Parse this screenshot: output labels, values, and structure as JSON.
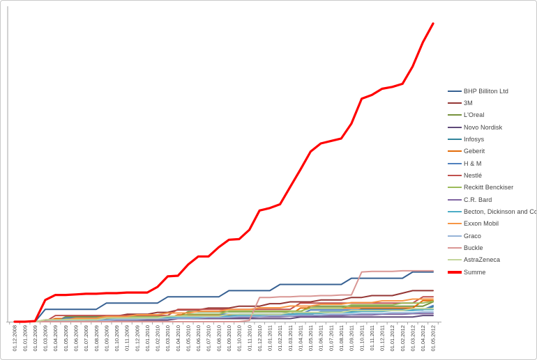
{
  "chart_data": {
    "type": "line",
    "title": "",
    "xlabel": "",
    "ylabel": "",
    "ylim": [
      0,
      50
    ],
    "grid": false,
    "y_axis_labels_visible": false,
    "legend_position": "right",
    "axis_color": "#a6a6a6",
    "tick_label_color": "#3f3f3f",
    "x_tick_rotation": -90,
    "categories": [
      "01.12.2008",
      "01.01.2009",
      "01.02.2009",
      "01.03.2009",
      "01.04.2009",
      "01.05.2009",
      "01.06.2009",
      "01.07.2009",
      "01.08.2009",
      "01.09.2009",
      "01.10.2009",
      "01.11.2009",
      "01.12.2009",
      "01.01.2010",
      "01.02.2010",
      "01.03.2010",
      "01.04.2010",
      "01.05.2010",
      "01.06.2010",
      "01.07.2010",
      "01.08.2010",
      "01.09.2010",
      "01.10.2010",
      "01.11.2010",
      "01.12.2010",
      "01.01.2011",
      "01.02.2011",
      "01.03.2011",
      "01.04.2011",
      "01.05.2011",
      "01.06.2011",
      "01.07.2011",
      "01.08.2011",
      "01.09.2011",
      "01.10.2011",
      "01.11.2011",
      "01.12.2011",
      "01.01.2012",
      "01.02.2012",
      "01.03.2012",
      "01.04.2012",
      "01.05.2012"
    ],
    "series": [
      {
        "name": "BHP Billiton Ltd",
        "color": "#366092",
        "thick": false,
        "values": [
          0,
          0,
          0,
          2,
          2,
          2,
          2,
          2,
          2,
          3,
          3,
          3,
          3,
          3,
          3,
          4,
          4,
          4,
          4,
          4,
          4,
          5,
          5,
          5,
          5,
          5,
          6,
          6,
          6,
          6,
          6,
          6,
          6,
          7,
          7,
          7,
          7,
          7,
          7,
          8,
          8,
          8
        ]
      },
      {
        "name": "3M",
        "color": "#943634",
        "thick": false,
        "values": [
          0,
          0,
          0,
          0.3,
          0.3,
          0.6,
          0.6,
          0.6,
          0.9,
          0.9,
          0.9,
          1.2,
          1.2,
          1.2,
          1.5,
          1.5,
          1.9,
          1.9,
          1.9,
          2.2,
          2.2,
          2.2,
          2.5,
          2.5,
          2.5,
          2.9,
          2.9,
          3.2,
          3.2,
          3.2,
          3.5,
          3.5,
          3.5,
          3.9,
          3.9,
          4.2,
          4.2,
          4.2,
          4.6,
          5,
          5,
          5
        ]
      },
      {
        "name": "L'Oreal",
        "color": "#76923C",
        "thick": false,
        "values": [
          0,
          0,
          0,
          0,
          0,
          0.8,
          0.8,
          0.8,
          0.8,
          0.8,
          0.8,
          0.8,
          0.8,
          0.8,
          0.8,
          0.8,
          0.8,
          1.6,
          1.6,
          1.6,
          1.6,
          1.6,
          1.6,
          1.6,
          1.6,
          1.6,
          1.6,
          1.6,
          1.6,
          2.5,
          2.5,
          2.5,
          2.5,
          2.5,
          2.5,
          2.5,
          2.5,
          2.5,
          2.5,
          2.5,
          2.5,
          3.2
        ]
      },
      {
        "name": "Novo Nordisk",
        "color": "#5F497A",
        "thick": false,
        "values": [
          0,
          0,
          0,
          0,
          0.25,
          0.25,
          0.25,
          0.25,
          0.25,
          0.25,
          0.25,
          0.25,
          0.25,
          0.25,
          0.25,
          0.25,
          0.5,
          0.5,
          0.5,
          0.5,
          0.5,
          0.5,
          0.5,
          0.5,
          0.5,
          0.5,
          0.5,
          0.5,
          0.75,
          0.75,
          0.75,
          0.75,
          0.75,
          0.75,
          0.75,
          0.75,
          0.75,
          0.75,
          0.75,
          0.75,
          1,
          1
        ]
      },
      {
        "name": "Infosys",
        "color": "#31849B",
        "thick": false,
        "values": [
          0,
          0,
          0,
          0,
          0,
          0,
          0.3,
          0.3,
          0.3,
          0.3,
          0.6,
          0.6,
          0.6,
          0.6,
          0.6,
          0.6,
          0.6,
          0.6,
          0.9,
          0.9,
          0.9,
          0.9,
          1.2,
          1.2,
          1.2,
          1.2,
          1.2,
          1.2,
          1.2,
          1.2,
          1.6,
          1.6,
          1.6,
          1.6,
          2,
          2,
          2,
          2,
          2,
          2,
          2,
          2.4
        ]
      },
      {
        "name": "Geberit",
        "color": "#E36C09",
        "thick": false,
        "values": [
          0,
          0,
          0,
          0,
          0.5,
          0.5,
          0.5,
          0.5,
          0.5,
          0.5,
          0.5,
          0.5,
          0.5,
          0.5,
          0.5,
          0.5,
          1.1,
          1.1,
          1.1,
          1.1,
          1.1,
          1.1,
          1.1,
          1.1,
          1.1,
          1.1,
          1.1,
          1.1,
          2.2,
          2.2,
          2.2,
          2.2,
          2.2,
          2.2,
          2.2,
          2.2,
          2.2,
          2.2,
          2.2,
          2.2,
          3.4,
          3.4
        ]
      },
      {
        "name": "H & M",
        "color": "#4F81BD",
        "thick": false,
        "values": [
          0,
          0,
          0,
          0,
          0,
          0.6,
          0.6,
          0.6,
          0.6,
          0.6,
          0.6,
          0.6,
          0.6,
          0.6,
          0.6,
          0.6,
          0.6,
          1.2,
          1.2,
          1.2,
          1.2,
          1.2,
          1.2,
          1.2,
          1.2,
          1.2,
          1.2,
          1.2,
          1.2,
          1.9,
          1.9,
          1.9,
          1.9,
          1.9,
          1.9,
          1.9,
          1.9,
          1.9,
          1.9,
          1.9,
          1.9,
          2.6
        ]
      },
      {
        "name": "Nestlé",
        "color": "#C0504D",
        "thick": false,
        "values": [
          0,
          0,
          0,
          0,
          1,
          1,
          1,
          1,
          1,
          1,
          1,
          1,
          1,
          1,
          1,
          1,
          2,
          2,
          2,
          2,
          2,
          2,
          2,
          2,
          2,
          2,
          2,
          2,
          3,
          3,
          3,
          3,
          3,
          3,
          3,
          3,
          3,
          3,
          3,
          3,
          4,
          4
        ]
      },
      {
        "name": "Reckitt Benckiser",
        "color": "#9BBB59",
        "thick": false,
        "values": [
          0,
          0,
          0,
          0,
          0,
          0.4,
          0.4,
          0.4,
          0.4,
          0.8,
          0.8,
          0.8,
          0.8,
          0.8,
          0.8,
          0.8,
          0.8,
          1.2,
          1.2,
          1.2,
          1.2,
          1.7,
          1.7,
          1.7,
          1.7,
          1.7,
          1.7,
          1.7,
          1.7,
          2.2,
          2.2,
          2.2,
          2.2,
          2.7,
          2.7,
          2.7,
          2.7,
          2.7,
          3,
          3,
          3,
          3.3
        ]
      },
      {
        "name": "C.R. Bard",
        "color": "#8064A2",
        "thick": false,
        "values": [
          0,
          0,
          0,
          0.1,
          0.1,
          0.1,
          0.2,
          0.2,
          0.2,
          0.3,
          0.3,
          0.3,
          0.4,
          0.4,
          0.4,
          0.5,
          0.5,
          0.5,
          0.6,
          0.6,
          0.6,
          0.7,
          0.7,
          0.7,
          0.8,
          0.8,
          0.8,
          0.9,
          0.9,
          0.9,
          1,
          1,
          1,
          1.1,
          1.1,
          1.1,
          1.2,
          1.2,
          1.2,
          1.3,
          1.3,
          1.3
        ]
      },
      {
        "name": "Becton, Dickinson and Co",
        "color": "#4BACC6",
        "thick": false,
        "values": [
          0,
          0,
          0,
          0,
          0.15,
          0.15,
          0.15,
          0.3,
          0.3,
          0.3,
          0.45,
          0.45,
          0.45,
          0.6,
          0.6,
          0.6,
          0.75,
          0.75,
          0.75,
          0.9,
          0.9,
          0.9,
          1.05,
          1.05,
          1.05,
          1.2,
          1.2,
          1.2,
          1.35,
          1.35,
          1.35,
          1.5,
          1.5,
          1.5,
          1.65,
          1.65,
          1.65,
          1.8,
          1.8,
          1.8,
          1.95,
          1.95
        ]
      },
      {
        "name": "Exxon Mobil",
        "color": "#F79646",
        "thick": false,
        "values": [
          0,
          0,
          0,
          0.28,
          0.28,
          0.28,
          0.56,
          0.56,
          0.56,
          0.84,
          0.84,
          0.84,
          1.12,
          1.12,
          1.12,
          1.4,
          1.4,
          1.4,
          1.68,
          1.68,
          1.68,
          1.96,
          1.96,
          1.96,
          2.24,
          2.24,
          2.24,
          2.52,
          2.52,
          2.52,
          2.8,
          2.8,
          2.8,
          3.08,
          3.08,
          3.08,
          3.36,
          3.36,
          3.36,
          3.64,
          3.64,
          3.64
        ]
      },
      {
        "name": "Graco",
        "color": "#95B3D7",
        "thick": false,
        "values": [
          0,
          0,
          0,
          0,
          0.12,
          0.12,
          0.12,
          0.24,
          0.24,
          0.24,
          0.36,
          0.36,
          0.36,
          0.48,
          0.48,
          0.48,
          0.6,
          0.6,
          0.6,
          0.72,
          0.72,
          0.72,
          0.84,
          0.84,
          0.84,
          0.96,
          0.96,
          0.96,
          1.08,
          1.08,
          1.08,
          1.2,
          1.2,
          1.2,
          1.32,
          1.32,
          1.32,
          1.44,
          1.44,
          1.44,
          1.56,
          1.56
        ]
      },
      {
        "name": "Buckle",
        "color": "#D99694",
        "thick": false,
        "values": [
          0,
          0,
          0,
          0,
          0,
          0,
          0,
          0,
          0,
          0,
          0,
          0,
          0,
          0,
          0,
          0,
          0,
          0,
          0,
          0,
          0,
          0,
          0,
          0.2,
          3.9,
          3.9,
          4,
          4,
          4.1,
          4.1,
          4.2,
          4.2,
          4.3,
          4.3,
          8,
          8.1,
          8.1,
          8.1,
          8.2,
          8.2,
          8.2,
          8.2
        ]
      },
      {
        "name": "AstraZeneca",
        "color": "#C3D69B",
        "thick": false,
        "values": [
          0,
          0,
          0,
          0.3,
          0.3,
          0.3,
          0.3,
          0.3,
          0.3,
          0.6,
          0.6,
          0.6,
          0.6,
          0.6,
          0.6,
          0.9,
          0.9,
          0.9,
          0.9,
          0.9,
          0.9,
          1.2,
          1.2,
          1.2,
          1.2,
          1.2,
          1.2,
          1.5,
          1.5,
          1.5,
          1.5,
          1.5,
          1.5,
          1.8,
          1.8,
          1.8,
          1.8,
          1.8,
          1.8,
          2.1,
          2.1,
          2.1
        ]
      },
      {
        "name": "Summe",
        "color": "#FF0000",
        "thick": true,
        "values": [
          0,
          0,
          0.1,
          3.5,
          4.3,
          4.3,
          4.4,
          4.5,
          4.5,
          4.6,
          4.6,
          4.7,
          4.7,
          4.7,
          5.6,
          7.3,
          7.4,
          9.2,
          10.5,
          10.5,
          12,
          13.2,
          13.3,
          14.8,
          17.9,
          18.3,
          18.9,
          21.7,
          24.5,
          27.4,
          28.7,
          29.1,
          29.5,
          31.9,
          35.9,
          36.5,
          37.5,
          37.8,
          38.3,
          41.1,
          45,
          48
        ]
      }
    ]
  }
}
